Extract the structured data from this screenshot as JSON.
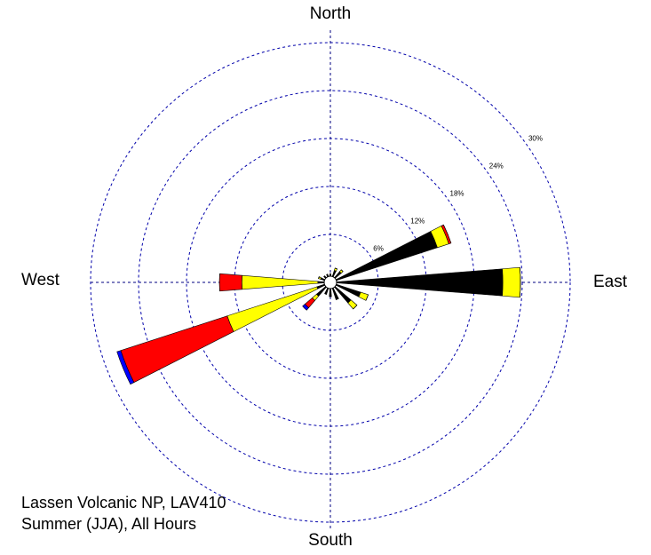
{
  "chart_data": {
    "type": "wind_rose",
    "compass": [
      "North",
      "East",
      "South",
      "West"
    ],
    "annotations": [
      "Lassen Volcanic NP, LAV410",
      "Summer (JJA), All Hours"
    ],
    "theta": [
      0,
      22.5,
      45,
      67.5,
      90,
      112.5,
      135,
      157.5,
      180,
      202.5,
      225,
      247.5,
      270,
      292.5,
      315,
      337.5
    ],
    "series": [
      {
        "color": "#000000",
        "values": [
          0.3,
          0.8,
          1,
          13.3,
          20.8,
          3.2,
          2.6,
          1.5,
          1,
          0.8,
          1.5,
          1,
          0.8,
          0.5,
          0.3,
          0.3
        ]
      },
      {
        "color": "#ffff00",
        "values": [
          0,
          0.3,
          0.3,
          1.5,
          2.2,
          1,
          1,
          0,
          0,
          0,
          0.7,
          11.8,
          9.5,
          0.3,
          0,
          0
        ]
      },
      {
        "color": "#ff0000",
        "values": [
          0,
          0,
          0,
          0.3,
          0,
          0,
          0,
          0,
          0,
          0,
          1.2,
          14,
          2.8,
          0,
          0,
          0
        ]
      },
      {
        "color": "#0000ff",
        "values": [
          0,
          0,
          0,
          0,
          0,
          0,
          0,
          0,
          0,
          0,
          0.4,
          0.5,
          0,
          0,
          0,
          0
        ]
      }
    ],
    "rlim": [
      0,
      30
    ],
    "rticks": [
      {
        "value": 6,
        "label": "6%"
      },
      {
        "value": 12,
        "label": "12%"
      },
      {
        "value": 18,
        "label": "18%"
      },
      {
        "value": 24,
        "label": "24%"
      },
      {
        "value": 30,
        "label": "30%"
      }
    ],
    "grid": true
  }
}
